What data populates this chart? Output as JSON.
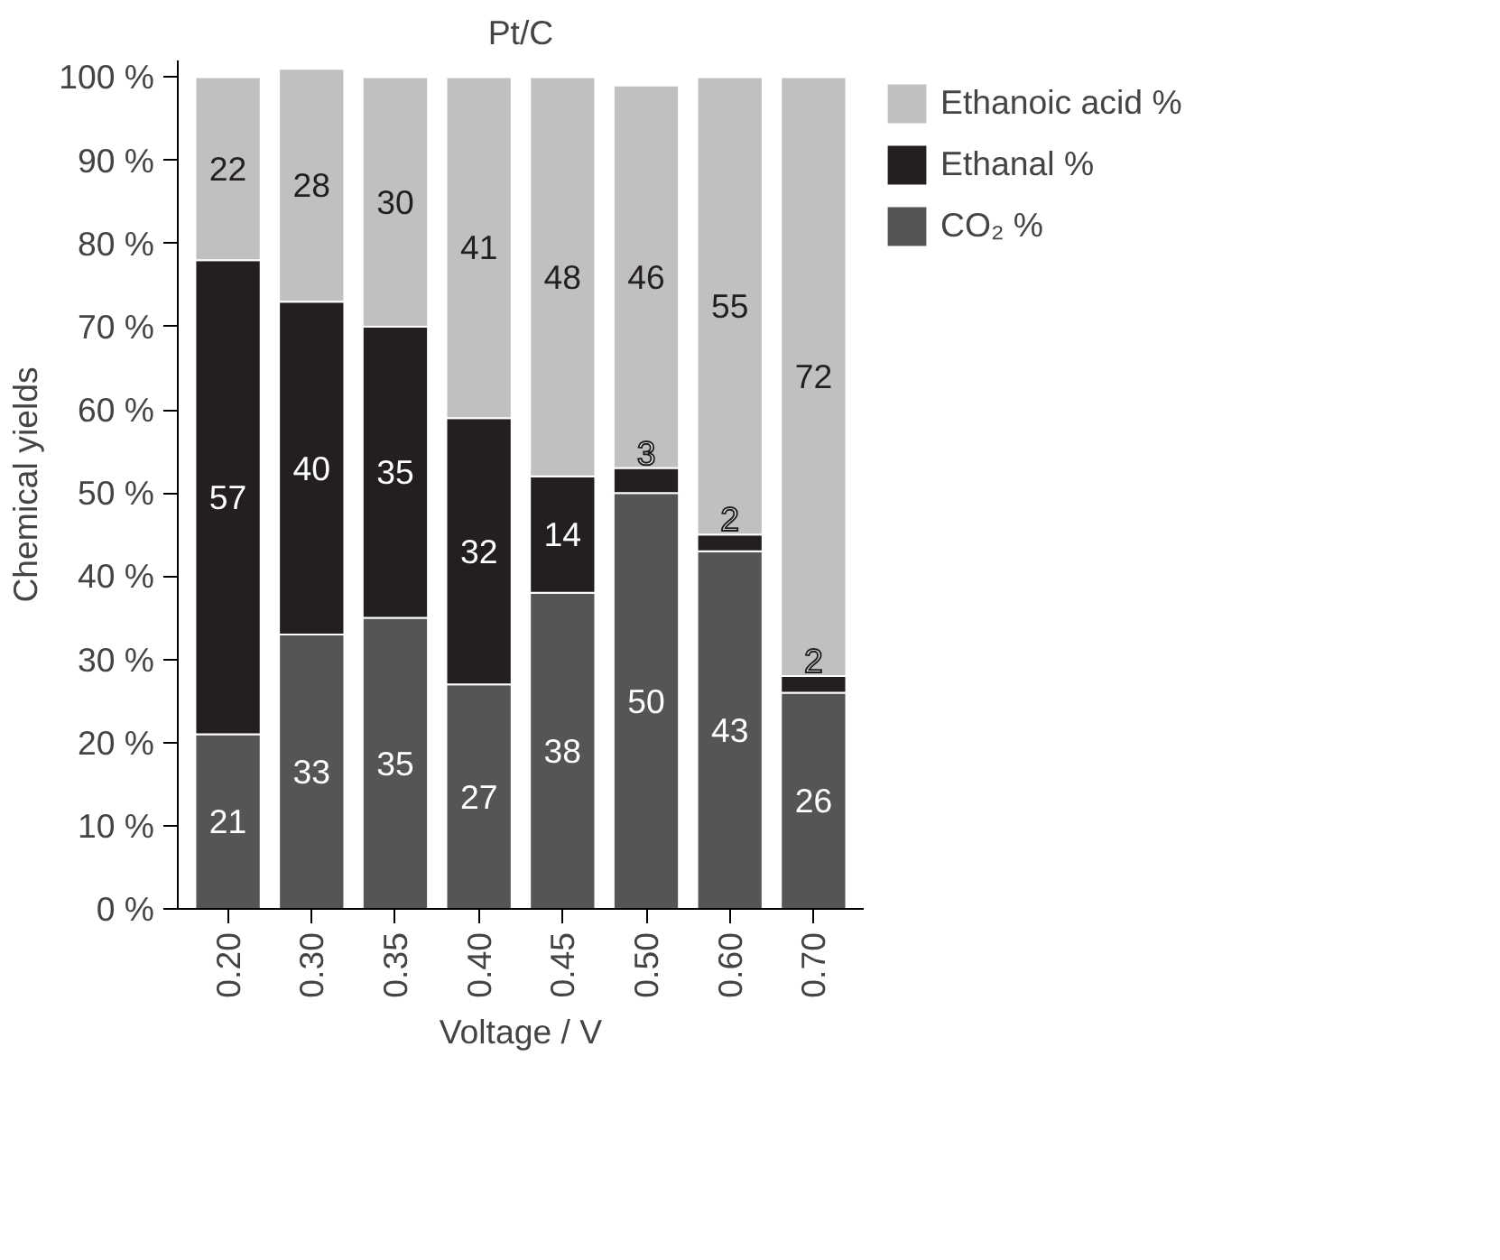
{
  "chart_data": {
    "type": "bar",
    "stacked": true,
    "title": "Pt/C",
    "xlabel": "Voltage / V",
    "ylabel": "Chemical yields",
    "categories": [
      "0.20",
      "0.30",
      "0.35",
      "0.40",
      "0.45",
      "0.50",
      "0.60",
      "0.70"
    ],
    "series": [
      {
        "name": "CO₂ %",
        "color": "#555555",
        "values": [
          21,
          33,
          35,
          27,
          38,
          50,
          43,
          26
        ]
      },
      {
        "name": "Ethanal %",
        "color": "#231f20",
        "values": [
          57,
          40,
          35,
          32,
          14,
          3,
          2,
          2
        ]
      },
      {
        "name": "Ethanoic acid %",
        "color": "#c0c0c1",
        "values": [
          22,
          28,
          30,
          41,
          48,
          46,
          55,
          72
        ]
      }
    ],
    "ylim": [
      0,
      102
    ],
    "yticks": [
      {
        "value": 0,
        "label": "0 %"
      },
      {
        "value": 10,
        "label": "10 %"
      },
      {
        "value": 20,
        "label": "20 %"
      },
      {
        "value": 30,
        "label": "30 %"
      },
      {
        "value": 40,
        "label": "40 %"
      },
      {
        "value": 50,
        "label": "50 %"
      },
      {
        "value": 60,
        "label": "60 %"
      },
      {
        "value": 70,
        "label": "70 %"
      },
      {
        "value": 80,
        "label": "80 %"
      },
      {
        "value": 90,
        "label": "90 %"
      },
      {
        "value": 100,
        "label": "100 %"
      }
    ],
    "data_labels": true,
    "legend": "top right",
    "grid": false
  }
}
